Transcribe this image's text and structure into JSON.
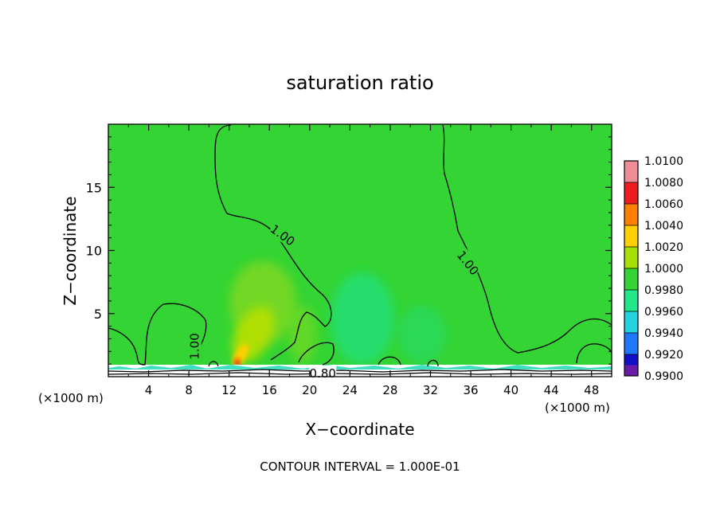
{
  "chart_data": {
    "type": "heatmap",
    "title": "saturation ratio",
    "xlabel": "X−coordinate",
    "ylabel": "Z−coordinate",
    "x_unit": "(×1000 m)",
    "x_unit_right": "(×1000 m)",
    "xlim": [
      0,
      50
    ],
    "ylim": [
      0,
      20
    ],
    "x_ticks": [
      4,
      8,
      12,
      16,
      20,
      24,
      28,
      32,
      36,
      40,
      44,
      48
    ],
    "x_tick_labels": [
      "4",
      "8",
      "12",
      "16",
      "20",
      "24",
      "28",
      "32",
      "36",
      "40",
      "44",
      "48"
    ],
    "y_ticks": [
      5,
      10,
      15
    ],
    "y_tick_labels": [
      "5",
      "10",
      "15"
    ],
    "background_level": 1.0,
    "colorbar": {
      "levels": [
        "1.0100",
        "1.0080",
        "1.0060",
        "1.0040",
        "1.0020",
        "1.0000",
        "0.9980",
        "0.9960",
        "0.9940",
        "0.9920",
        "0.9900"
      ],
      "colors": [
        "#f08c96",
        "#ee1c1c",
        "#ff8000",
        "#ffd000",
        "#a6e000",
        "#33d433",
        "#22e88a",
        "#22d4e0",
        "#1e78ff",
        "#1010c8",
        "#6a1aa8"
      ]
    },
    "contour_labels": [
      {
        "text": "1.00",
        "x": 17.3,
        "y": 11.2,
        "angle": 36
      },
      {
        "text": "1.00",
        "x": 35.7,
        "y": 9.0,
        "angle": 52
      },
      {
        "text": "1.00",
        "x": 8.6,
        "y": 2.4,
        "angle": -90
      },
      {
        "text": "0.80",
        "x": 21.3,
        "y": 0.25,
        "angle": 0
      }
    ],
    "features": [
      {
        "name": "warm-plume",
        "x": 13.0,
        "y": 1.2,
        "peak": 1.006
      },
      {
        "name": "dry-patch",
        "x": 25.0,
        "y": 5.0,
        "peak": 0.9985
      }
    ],
    "footer": "CONTOUR INTERVAL =  1.000E-01"
  }
}
